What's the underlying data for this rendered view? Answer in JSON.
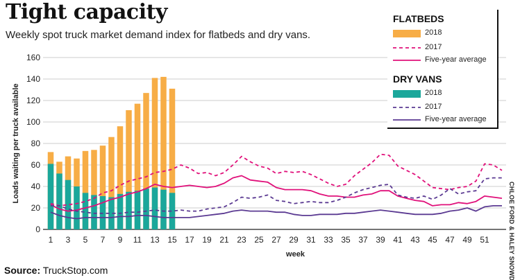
{
  "header": {
    "title": "Tight capacity",
    "subtitle": "Weekly spot truck market demand index for flatbeds and dry vans."
  },
  "footer": {
    "source_label": "Source:",
    "source_value": "TruckStop.com",
    "credit": "CHLOE FORD & HALEY SNOWDEN"
  },
  "legend": {
    "flatbeds_heading": "FLATBEDS",
    "dryvans_heading": "DRY VANS",
    "items": {
      "flat_2018": "2018",
      "flat_2017": "2017",
      "flat_avg": "Five-year average",
      "dry_2018": "2018",
      "dry_2017": "2017",
      "dry_avg": "Five-year average"
    }
  },
  "colors": {
    "flatbed_bar": "#f7ad46",
    "flatbed_line": "#e0107a",
    "dryvan_bar": "#1ba79b",
    "dryvan_line": "#5b3a92",
    "grid": "#bdbdbd"
  },
  "chart_data": {
    "type": "bar",
    "ylabel": "Loads waiting per truck available",
    "xlabel": "week",
    "ylim": [
      0,
      160
    ],
    "xlim": [
      1,
      53
    ],
    "yticks": [
      0,
      20,
      40,
      60,
      80,
      100,
      120,
      140,
      160
    ],
    "xticks": [
      1,
      3,
      5,
      7,
      9,
      11,
      13,
      15,
      17,
      19,
      21,
      23,
      25,
      27,
      29,
      31,
      33,
      35,
      37,
      39,
      41,
      43,
      45,
      47,
      49,
      51
    ],
    "grid": true,
    "legend_position": "top-right",
    "series": [
      {
        "name": "Flatbeds 2018",
        "kind": "bar",
        "x": [
          1,
          2,
          3,
          4,
          5,
          6,
          7,
          8,
          9,
          10,
          11,
          12,
          13,
          14,
          15
        ],
        "values": [
          72,
          63,
          68,
          66,
          73,
          74,
          78,
          86,
          96,
          111,
          117,
          127,
          141,
          142,
          131
        ]
      },
      {
        "name": "Dry vans 2018",
        "kind": "bar",
        "x": [
          1,
          2,
          3,
          4,
          5,
          6,
          7,
          8,
          9,
          10,
          11,
          12,
          13,
          14,
          15
        ],
        "values": [
          61,
          52,
          46,
          40,
          34,
          32,
          31,
          30,
          33,
          35,
          36,
          38,
          39,
          37,
          34
        ]
      },
      {
        "name": "Flatbeds 2017",
        "kind": "line",
        "style": "dashed",
        "x": [
          1,
          2,
          3,
          4,
          5,
          6,
          7,
          8,
          9,
          10,
          11,
          12,
          13,
          14,
          15,
          16,
          17,
          18,
          19,
          20,
          21,
          22,
          23,
          24,
          25,
          26,
          27,
          28,
          29,
          30,
          31,
          32,
          33,
          34,
          35,
          36,
          37,
          38,
          39,
          40,
          41,
          42,
          43,
          44,
          45,
          46,
          47,
          48,
          49,
          50,
          51,
          52,
          53
        ],
        "values": [
          24,
          22,
          23,
          24,
          26,
          29,
          34,
          36,
          41,
          45,
          47,
          49,
          53,
          54,
          56,
          60,
          57,
          52,
          53,
          50,
          53,
          60,
          68,
          63,
          59,
          57,
          52,
          54,
          53,
          54,
          51,
          47,
          43,
          40,
          42,
          50,
          56,
          62,
          70,
          69,
          59,
          55,
          51,
          45,
          39,
          38,
          37,
          39,
          40,
          45,
          61,
          60,
          55
        ]
      },
      {
        "name": "Flatbeds five-year average",
        "kind": "line",
        "style": "solid",
        "x": [
          1,
          2,
          3,
          4,
          5,
          6,
          7,
          8,
          9,
          10,
          11,
          12,
          13,
          14,
          15,
          16,
          17,
          18,
          19,
          20,
          21,
          22,
          23,
          24,
          25,
          26,
          27,
          28,
          29,
          30,
          31,
          32,
          33,
          34,
          35,
          36,
          37,
          38,
          39,
          40,
          41,
          42,
          43,
          44,
          45,
          46,
          47,
          48,
          49,
          50,
          51,
          52,
          53
        ],
        "values": [
          23,
          19,
          17,
          18,
          20,
          22,
          25,
          28,
          30,
          33,
          35,
          38,
          42,
          40,
          39,
          40,
          41,
          40,
          39,
          40,
          43,
          48,
          50,
          46,
          45,
          44,
          39,
          37,
          37,
          37,
          36,
          33,
          31,
          31,
          30,
          30,
          32,
          33,
          36,
          36,
          31,
          29,
          27,
          26,
          22,
          23,
          23,
          25,
          24,
          26,
          31,
          30,
          29
        ]
      },
      {
        "name": "Dry vans 2017",
        "kind": "line",
        "style": "dashed",
        "x": [
          1,
          2,
          3,
          4,
          5,
          6,
          7,
          8,
          9,
          10,
          11,
          12,
          13,
          14,
          15,
          16,
          17,
          18,
          19,
          20,
          21,
          22,
          23,
          24,
          25,
          26,
          27,
          28,
          29,
          30,
          31,
          32,
          33,
          34,
          35,
          36,
          37,
          38,
          39,
          40,
          41,
          42,
          43,
          44,
          45,
          46,
          47,
          48,
          49,
          50,
          51,
          52,
          53
        ],
        "values": [
          22,
          22,
          19,
          17,
          16,
          15,
          15,
          15,
          15,
          16,
          16,
          17,
          18,
          17,
          17,
          18,
          17,
          17,
          19,
          20,
          21,
          25,
          30,
          29,
          30,
          32,
          27,
          26,
          24,
          25,
          26,
          25,
          25,
          27,
          30,
          34,
          37,
          39,
          41,
          42,
          32,
          30,
          29,
          31,
          28,
          32,
          38,
          33,
          35,
          36,
          47,
          48,
          48
        ]
      },
      {
        "name": "Dry vans five-year average",
        "kind": "line",
        "style": "solid",
        "x": [
          1,
          2,
          3,
          4,
          5,
          6,
          7,
          8,
          9,
          10,
          11,
          12,
          13,
          14,
          15,
          16,
          17,
          18,
          19,
          20,
          21,
          22,
          23,
          24,
          25,
          26,
          27,
          28,
          29,
          30,
          31,
          32,
          33,
          34,
          35,
          36,
          37,
          38,
          39,
          40,
          41,
          42,
          43,
          44,
          45,
          46,
          47,
          48,
          49,
          50,
          51,
          52,
          53
        ],
        "values": [
          16,
          13,
          11,
          10,
          11,
          11,
          11,
          11,
          12,
          12,
          13,
          13,
          12,
          11,
          11,
          11,
          11,
          12,
          13,
          14,
          15,
          17,
          18,
          17,
          17,
          17,
          16,
          16,
          14,
          13,
          13,
          14,
          14,
          14,
          15,
          15,
          16,
          17,
          18,
          17,
          16,
          15,
          14,
          14,
          14,
          15,
          17,
          18,
          20,
          17,
          21,
          22,
          22
        ]
      }
    ]
  }
}
